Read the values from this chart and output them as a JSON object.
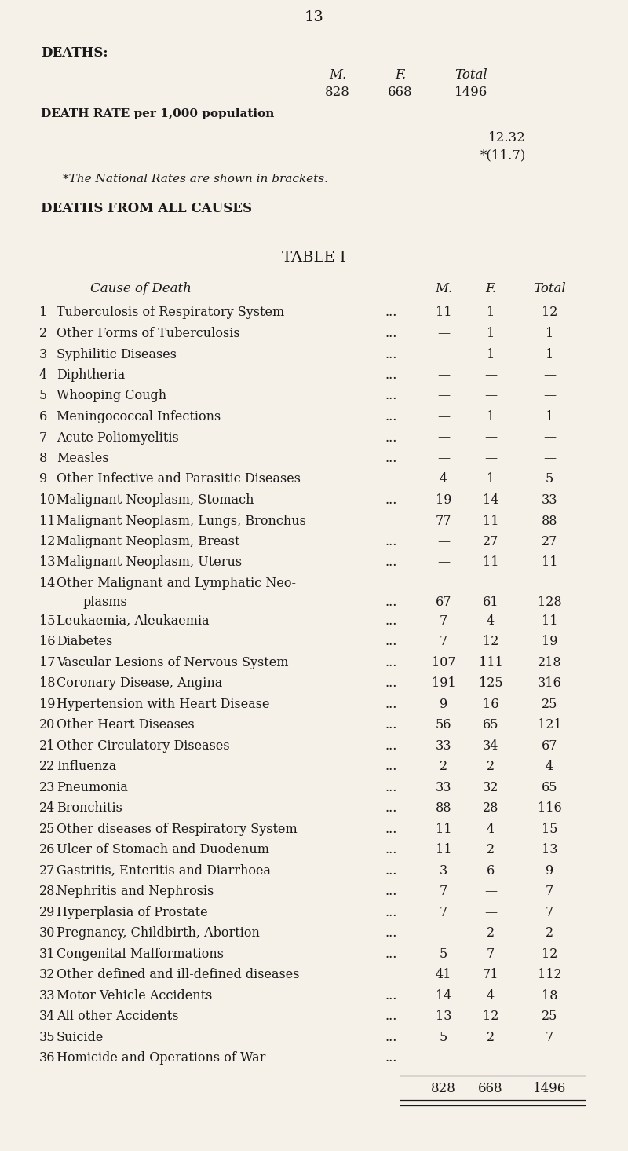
{
  "page_number": "13",
  "bg_color": "#f5f0e8",
  "text_color": "#1a1a1a",
  "deaths_header": "DEATHS:",
  "col_headers": [
    "M.",
    "F.",
    "Total"
  ],
  "deaths_values": [
    "828",
    "668",
    "1496"
  ],
  "death_rate_label": "DEATH RATE per 1,000 population",
  "death_rate_value": "12.32",
  "death_rate_national": "*(11.7)",
  "national_note": "*The National Rates are shown in brackets.",
  "all_causes_header": "DEATHS FROM ALL CAUSES",
  "table_title": "TABLE I",
  "table_col_header": "Cause of Death",
  "table_cols": [
    "M.",
    "F.",
    "Total"
  ],
  "rows": [
    {
      "num": "1",
      "cause": "Tuberculosis of Respiratory System",
      "dots": "...",
      "m": "11",
      "f": "1",
      "total": "12",
      "two_line": false
    },
    {
      "num": "2",
      "cause": "Other Forms of Tuberculosis",
      "dots": "...",
      "m": "—",
      "f": "1",
      "total": "1",
      "two_line": false
    },
    {
      "num": "3",
      "cause": "Syphilitic Diseases",
      "dots": "...",
      "m": "—",
      "f": "1",
      "total": "1",
      "two_line": false
    },
    {
      "num": "4",
      "cause": "Diphtheria",
      "dots": "...",
      "m": "—",
      "f": "—",
      "total": "—",
      "two_line": false
    },
    {
      "num": "5",
      "cause": "Whooping Cough",
      "dots": "...",
      "m": "—",
      "f": "—",
      "total": "—",
      "two_line": false
    },
    {
      "num": "6",
      "cause": "Meningococcal Infections",
      "dots": "...",
      "m": "—",
      "f": "1",
      "total": "1",
      "two_line": false
    },
    {
      "num": "7",
      "cause": "Acute Poliomyelitis",
      "dots": "...",
      "m": "—",
      "f": "—",
      "total": "—",
      "two_line": false
    },
    {
      "num": "8",
      "cause": "Measles",
      "dots": "...",
      "m": "—",
      "f": "—",
      "total": "—",
      "two_line": false
    },
    {
      "num": "9",
      "cause": "Other Infective and Parasitic Diseases",
      "dots": "",
      "m": "4",
      "f": "1",
      "total": "5",
      "two_line": false
    },
    {
      "num": "10",
      "cause": "Malignant Neoplasm, Stomach",
      "dots": "...",
      "m": "19",
      "f": "14",
      "total": "33",
      "two_line": false
    },
    {
      "num": "11",
      "cause": "Malignant Neoplasm, Lungs, Bronchus",
      "dots": "",
      "m": "77",
      "f": "11",
      "total": "88",
      "two_line": false
    },
    {
      "num": "12",
      "cause": "Malignant Neoplasm, Breast",
      "dots": "...",
      "m": "—",
      "f": "27",
      "total": "27",
      "two_line": false
    },
    {
      "num": "13",
      "cause": "Malignant Neoplasm, Uterus",
      "dots": "...",
      "m": "—",
      "f": "11",
      "total": "11",
      "two_line": false
    },
    {
      "num": "14",
      "cause": "Other Malignant and Lymphatic Neo-",
      "cause2": "    plasms",
      "dots": "...",
      "m": "67",
      "f": "61",
      "total": "128",
      "two_line": true
    },
    {
      "num": "15",
      "cause": "Leukaemia, Aleukaemia",
      "dots": "...",
      "m": "7",
      "f": "4",
      "total": "11",
      "two_line": false
    },
    {
      "num": "16",
      "cause": "Diabetes",
      "dots": "...",
      "m": "7",
      "f": "12",
      "total": "19",
      "two_line": false
    },
    {
      "num": "17",
      "cause": "Vascular Lesions of Nervous System",
      "dots": "...",
      "m": "107",
      "f": "111",
      "total": "218",
      "two_line": false
    },
    {
      "num": "18",
      "cause": "Coronary Disease, Angina",
      "dots": "...",
      "m": "191",
      "f": "125",
      "total": "316",
      "two_line": false
    },
    {
      "num": "19",
      "cause": "Hypertension with Heart Disease",
      "dots": "...",
      "m": "9",
      "f": "16",
      "total": "25",
      "two_line": false
    },
    {
      "num": "20",
      "cause": "Other Heart Diseases",
      "dots": "...",
      "m": "56",
      "f": "65",
      "total": "121",
      "two_line": false
    },
    {
      "num": "21",
      "cause": "Other Circulatory Diseases",
      "dots": "...",
      "m": "33",
      "f": "34",
      "total": "67",
      "two_line": false
    },
    {
      "num": "22",
      "cause": "Influenza",
      "dots": "...",
      "m": "2",
      "f": "2",
      "total": "4",
      "two_line": false
    },
    {
      "num": "23",
      "cause": "Pneumonia",
      "dots": "...",
      "m": "33",
      "f": "32",
      "total": "65",
      "two_line": false
    },
    {
      "num": "24",
      "cause": "Bronchitis",
      "dots": "...",
      "m": "88",
      "f": "28",
      "total": "116",
      "two_line": false
    },
    {
      "num": "25",
      "cause": "Other diseases of Respiratory System",
      "dots": "...",
      "m": "11",
      "f": "4",
      "total": "15",
      "two_line": false
    },
    {
      "num": "26",
      "cause": "Ulcer of Stomach and Duodenum",
      "dots": "...",
      "m": "11",
      "f": "2",
      "total": "13",
      "two_line": false
    },
    {
      "num": "27",
      "cause": "Gastritis, Enteritis and Diarrhoea",
      "dots": "...",
      "m": "3",
      "f": "6",
      "total": "9",
      "two_line": false
    },
    {
      "num": "28.",
      "cause": "Nephritis and Nephrosis",
      "dots": "...",
      "m": "7",
      "f": "—",
      "total": "7",
      "two_line": false
    },
    {
      "num": "29",
      "cause": "Hyperplasia of Prostate",
      "dots": "...",
      "m": "7",
      "f": "—",
      "total": "7",
      "two_line": false
    },
    {
      "num": "30",
      "cause": "Pregnancy, Childbirth, Abortion",
      "dots": "...",
      "m": "—",
      "f": "2",
      "total": "2",
      "two_line": false
    },
    {
      "num": "31",
      "cause": "Congenital Malformations",
      "dots": "...",
      "m": "5",
      "f": "7",
      "total": "12",
      "two_line": false
    },
    {
      "num": "32",
      "cause": "Other defined and ill-defined diseases",
      "dots": "",
      "m": "41",
      "f": "71",
      "total": "112",
      "two_line": false
    },
    {
      "num": "33",
      "cause": "Motor Vehicle Accidents",
      "dots": "...",
      "m": "14",
      "f": "4",
      "total": "18",
      "two_line": false
    },
    {
      "num": "34",
      "cause": "All other Accidents",
      "dots": "...",
      "m": "13",
      "f": "12",
      "total": "25",
      "two_line": false
    },
    {
      "num": "35",
      "cause": "Suicide",
      "dots": "...",
      "m": "5",
      "f": "2",
      "total": "7",
      "two_line": false
    },
    {
      "num": "36",
      "cause": "Homicide and Operations of War",
      "dots": "...",
      "m": "—",
      "f": "—",
      "total": "—",
      "two_line": false
    }
  ],
  "totals": [
    "828",
    "668",
    "1496"
  ]
}
